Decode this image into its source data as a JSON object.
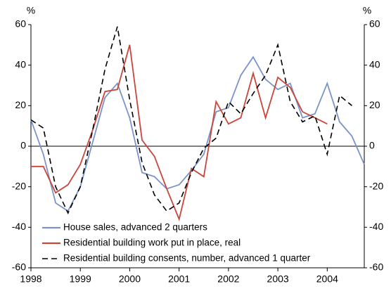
{
  "chart_data": {
    "type": "line",
    "y_label": "%",
    "y2_label": "%",
    "x": [
      1998,
      1998.25,
      1998.5,
      1998.75,
      1999,
      1999.25,
      1999.5,
      1999.75,
      2000,
      2000.25,
      2000.5,
      2000.75,
      2001,
      2001.25,
      2001.5,
      2001.75,
      2002,
      2002.25,
      2002.5,
      2002.75,
      2003,
      2003.25,
      2003.5,
      2003.75,
      2004,
      2004.25,
      2004.5,
      2004.75
    ],
    "xlim": [
      1998,
      2004.75
    ],
    "xticks": [
      1998,
      1999,
      2000,
      2001,
      2002,
      2003,
      2004
    ],
    "ylim": [
      -60,
      60
    ],
    "yticks": [
      -60,
      -40,
      -20,
      0,
      20,
      40,
      60
    ],
    "y2lim": [
      -60,
      60
    ],
    "y2ticks": [
      -60,
      -40,
      -20,
      0,
      20,
      40,
      60
    ],
    "series": [
      {
        "name": "House sales, advanced 2 quarters",
        "color": "#7b93c9",
        "dash": "solid",
        "values": [
          13,
          -4,
          -28,
          -32,
          -20,
          2,
          24,
          31,
          14,
          -13,
          -15,
          -21,
          -19,
          -12,
          -4,
          17,
          19,
          35,
          44,
          33,
          28,
          31,
          14,
          16,
          31,
          12,
          5,
          -9
        ]
      },
      {
        "name": "Residential building work put in place, real",
        "color": "#c8463a",
        "dash": "solid",
        "values": [
          -10,
          -10,
          -23,
          -19,
          -9,
          8,
          27,
          28,
          50,
          3,
          -5,
          -21,
          -36,
          -11,
          -15,
          22,
          11,
          14,
          36,
          14,
          34,
          29,
          17,
          14,
          11,
          null,
          null,
          null
        ]
      },
      {
        "name": "Residential building consents, number, advanced 1 quarter",
        "color": "#000000",
        "dash": "dashed",
        "values": [
          13,
          9,
          -20,
          -33,
          -20,
          8,
          38,
          59,
          23,
          -8,
          -24,
          -32,
          -28,
          -13,
          -1,
          4,
          22,
          16,
          26,
          35,
          50,
          22,
          12,
          15,
          -4,
          25,
          20,
          null
        ]
      }
    ]
  }
}
